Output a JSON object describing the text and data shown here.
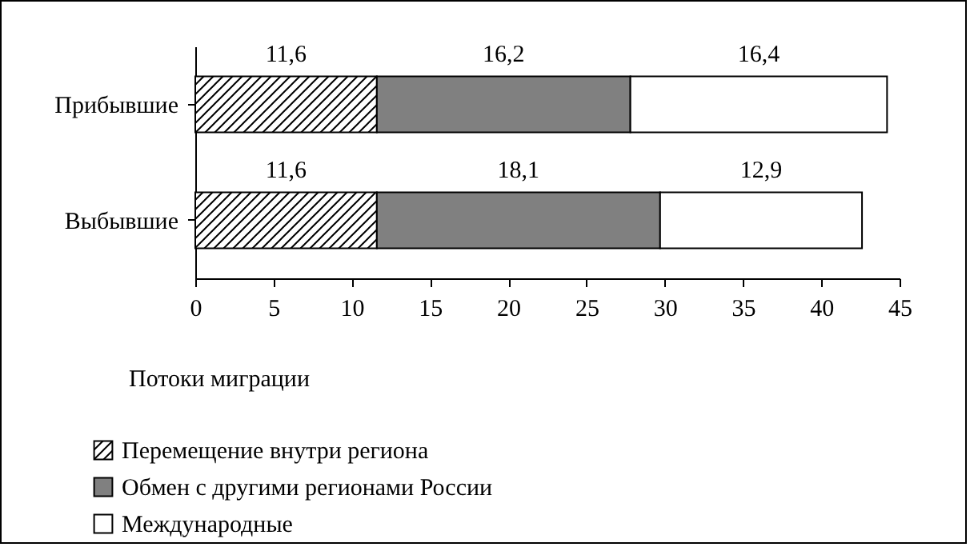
{
  "chart_data": {
    "type": "bar",
    "orientation": "horizontal",
    "stacked": true,
    "xlabel": "Потоки миграции",
    "categories": [
      "Прибывшие",
      "Выбывшие"
    ],
    "series": [
      {
        "name": "Перемещение внутри региона",
        "color": "#000000",
        "values": [
          11.6,
          11.6
        ],
        "value_labels": [
          "11,6",
          "11,6"
        ]
      },
      {
        "name": "Обмен с другими регионами России",
        "color": "#808080",
        "values": [
          16.2,
          18.1
        ],
        "value_labels": [
          "16,2",
          "18,1"
        ]
      },
      {
        "name": "Международные",
        "color": "#ffffff",
        "values": [
          16.4,
          12.9
        ],
        "value_labels": [
          "16,4",
          "12,9"
        ]
      }
    ],
    "xlim": [
      0,
      45
    ],
    "xticks": [
      0,
      5,
      10,
      15,
      20,
      25,
      30,
      35,
      40,
      45
    ],
    "grid": false,
    "legend": "bottom"
  }
}
